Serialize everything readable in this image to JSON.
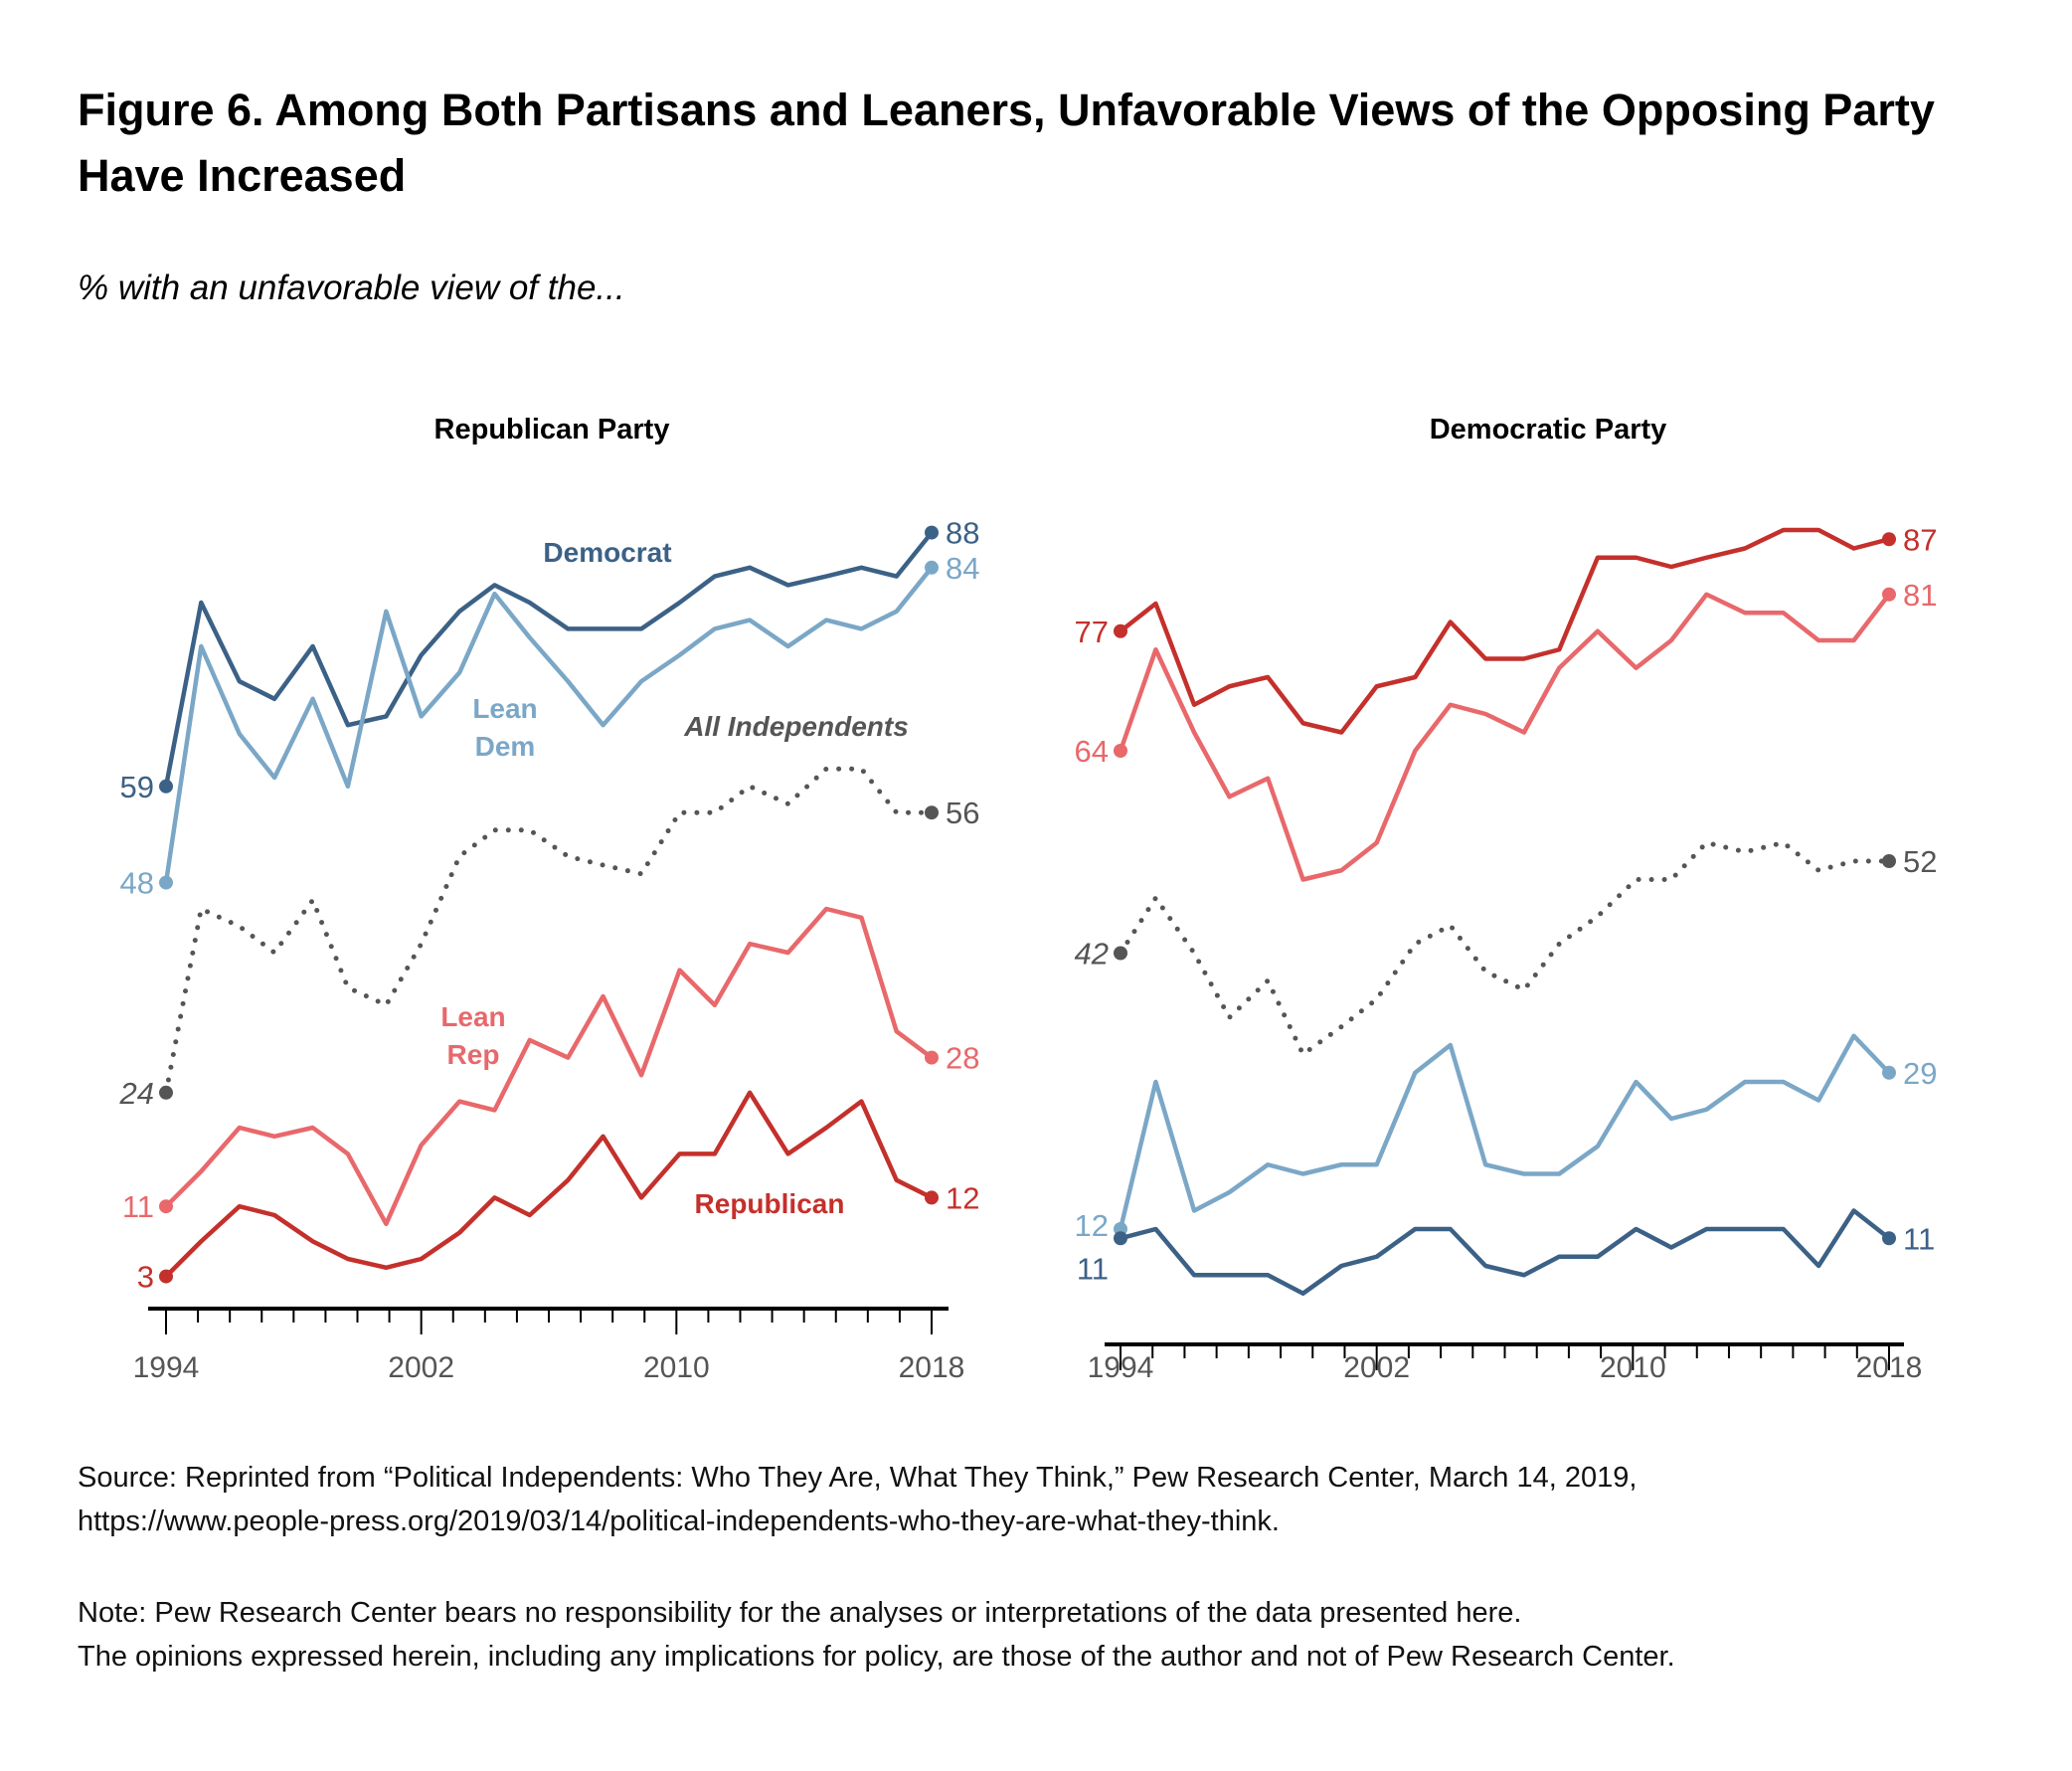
{
  "title": "Figure 6. Among Both Partisans and Leaners, Unfavorable Views of the Opposing Party Have Increased",
  "subtitle": "% with an unfavorable view of the...",
  "source": "Source: Reprinted from “Political Independents: Who They Are, What They Think,” Pew Research Center, March 14, 2019,",
  "source_url": "https://www.people-press.org/2019/03/14/political-independents-who-they-are-what-they-think.",
  "note_1": "Note: Pew Research Center bears no responsibility for the analyses or interpretations of the data presented here.",
  "note_2": "The opinions expressed herein, including any implications for policy, are those of the author and not of Pew Research Center.",
  "colors": {
    "democrat": "#3c6186",
    "lean_dem": "#7ba7c7",
    "independents": "#555555",
    "lean_rep": "#e8686b",
    "republican": "#c4302b",
    "axis": "#000000",
    "tick_label": "#555555"
  },
  "chart_data": [
    {
      "type": "line",
      "title": "Republican Party",
      "x": [
        1994,
        1995.1,
        1996.3,
        1997.4,
        1998.6,
        1999.7,
        2000.9,
        2002,
        2003.2,
        2004.3,
        2005.4,
        2006.6,
        2007.7,
        2008.9,
        2010.1,
        2011.2,
        2012.3,
        2013.5,
        2014.7,
        2015.8,
        2016.9,
        2018
      ],
      "xticks": [
        "1994",
        "2002",
        "2010",
        "2018"
      ],
      "xlim": [
        1994,
        2018
      ],
      "ylim": [
        0,
        100
      ],
      "grid": false,
      "series": [
        {
          "name": "Democrat",
          "key": "democrat",
          "style": "solid",
          "start_label": "59",
          "end_label": "88",
          "values": [
            59,
            80,
            71,
            69,
            75,
            66,
            67,
            74,
            79,
            82,
            80,
            77,
            77,
            77,
            80,
            83,
            84,
            82,
            83,
            84,
            83,
            88
          ]
        },
        {
          "name": "Lean Dem",
          "key": "lean_dem",
          "style": "solid",
          "start_label": "48",
          "end_label": "84",
          "values": [
            48,
            75,
            65,
            60,
            69,
            59,
            79,
            67,
            72,
            81,
            76,
            71,
            66,
            71,
            74,
            77,
            78,
            75,
            78,
            77,
            79,
            84
          ]
        },
        {
          "name": "All Independents",
          "key": "independents",
          "style": "dotted",
          "start_label": "24",
          "end_label": "56",
          "values": [
            24,
            45,
            43,
            40,
            46,
            36,
            34,
            41,
            51,
            54,
            54,
            51,
            50,
            49,
            56,
            56,
            59,
            57,
            61,
            61,
            56,
            56
          ]
        },
        {
          "name": "Lean Rep",
          "key": "lean_rep",
          "style": "solid",
          "start_label": "11",
          "end_label": "28",
          "values": [
            11,
            15,
            20,
            19,
            20,
            17,
            9,
            18,
            23,
            22,
            30,
            28,
            35,
            26,
            38,
            34,
            41,
            40,
            45,
            44,
            31,
            28
          ]
        },
        {
          "name": "Republican",
          "key": "republican",
          "style": "solid",
          "start_label": "3",
          "end_label": "12",
          "values": [
            3,
            7,
            11,
            10,
            7,
            5,
            4,
            5,
            8,
            12,
            10,
            14,
            19,
            12,
            17,
            17,
            24,
            17,
            20,
            23,
            14,
            12
          ]
        }
      ],
      "series_labels": [
        {
          "key": "democrat",
          "lines": [
            "Democrat"
          ]
        },
        {
          "key": "lean_dem",
          "lines": [
            "Lean",
            "Dem"
          ]
        },
        {
          "key": "independents",
          "lines": [
            "All Independents"
          ]
        },
        {
          "key": "lean_rep",
          "lines": [
            "Lean",
            "Rep"
          ]
        },
        {
          "key": "republican",
          "lines": [
            "Republican"
          ]
        }
      ]
    },
    {
      "type": "line",
      "title": "Democratic Party",
      "x": [
        1994,
        1995.1,
        1996.3,
        1997.4,
        1998.6,
        1999.7,
        2000.9,
        2002,
        2003.2,
        2004.3,
        2005.4,
        2006.6,
        2007.7,
        2008.9,
        2010.1,
        2011.2,
        2012.3,
        2013.5,
        2014.7,
        2015.8,
        2016.9,
        2018
      ],
      "xticks": [
        "1994",
        "2002",
        "2010",
        "2018"
      ],
      "xlim": [
        1994,
        2018
      ],
      "ylim": [
        0,
        100
      ],
      "grid": false,
      "series": [
        {
          "name": "Republican",
          "key": "republican",
          "style": "solid",
          "start_label": "77",
          "end_label": "87",
          "values": [
            77,
            80,
            69,
            71,
            72,
            67,
            66,
            71,
            72,
            78,
            74,
            74,
            75,
            85,
            85,
            84,
            85,
            86,
            88,
            88,
            86,
            87
          ]
        },
        {
          "name": "Lean Rep",
          "key": "lean_rep",
          "style": "solid",
          "start_label": "64",
          "end_label": "81",
          "values": [
            64,
            75,
            66,
            59,
            61,
            50,
            51,
            54,
            64,
            69,
            68,
            66,
            73,
            77,
            73,
            76,
            81,
            79,
            79,
            76,
            76,
            81
          ]
        },
        {
          "name": "All Independents",
          "key": "independents",
          "style": "dotted",
          "start_label": "42",
          "end_label": "52",
          "values": [
            42,
            48,
            42,
            35,
            39,
            31,
            34,
            37,
            43,
            45,
            40,
            38,
            43,
            46,
            50,
            50,
            54,
            53,
            54,
            51,
            52,
            52
          ]
        },
        {
          "name": "Lean Dem",
          "key": "lean_dem",
          "style": "solid",
          "start_label": "12",
          "end_label": "29",
          "values": [
            12,
            28,
            14,
            16,
            19,
            18,
            19,
            19,
            29,
            32,
            19,
            18,
            18,
            21,
            28,
            24,
            25,
            28,
            28,
            26,
            33,
            29
          ]
        },
        {
          "name": "Democrat",
          "key": "democrat",
          "style": "solid",
          "start_label": "11",
          "end_label": "11",
          "values": [
            11,
            12,
            7,
            7,
            7,
            5,
            8,
            9,
            12,
            12,
            8,
            7,
            9,
            9,
            12,
            10,
            12,
            12,
            12,
            8,
            14,
            11
          ]
        }
      ]
    }
  ]
}
